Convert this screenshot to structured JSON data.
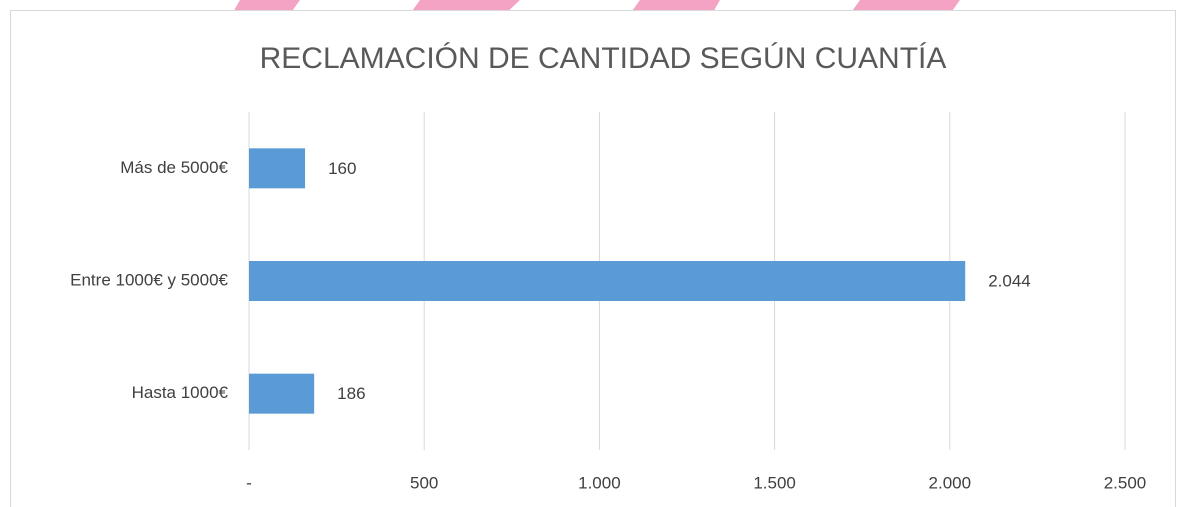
{
  "chart_data": {
    "type": "barh",
    "title": "RECLAMACIÓN DE CANTIDAD SEGÚN CUANTÍA",
    "categories": [
      "Más de 5000€",
      "Entre 1000€ y 5000€",
      "Hasta 1000€"
    ],
    "values": [
      160,
      2044,
      186
    ],
    "value_labels": [
      "160",
      "2.044",
      "186"
    ],
    "color": "#5b9bd5",
    "xlim": [
      0,
      2500
    ],
    "xticks": [
      {
        "value": 0,
        "label": "-"
      },
      500,
      {
        "value": 1000,
        "label": "1.000"
      },
      {
        "value": 1500,
        "label": "1.500"
      },
      {
        "value": 2000,
        "label": "2.000"
      },
      {
        "value": 2500,
        "label": "2.500"
      }
    ],
    "grid": true
  }
}
